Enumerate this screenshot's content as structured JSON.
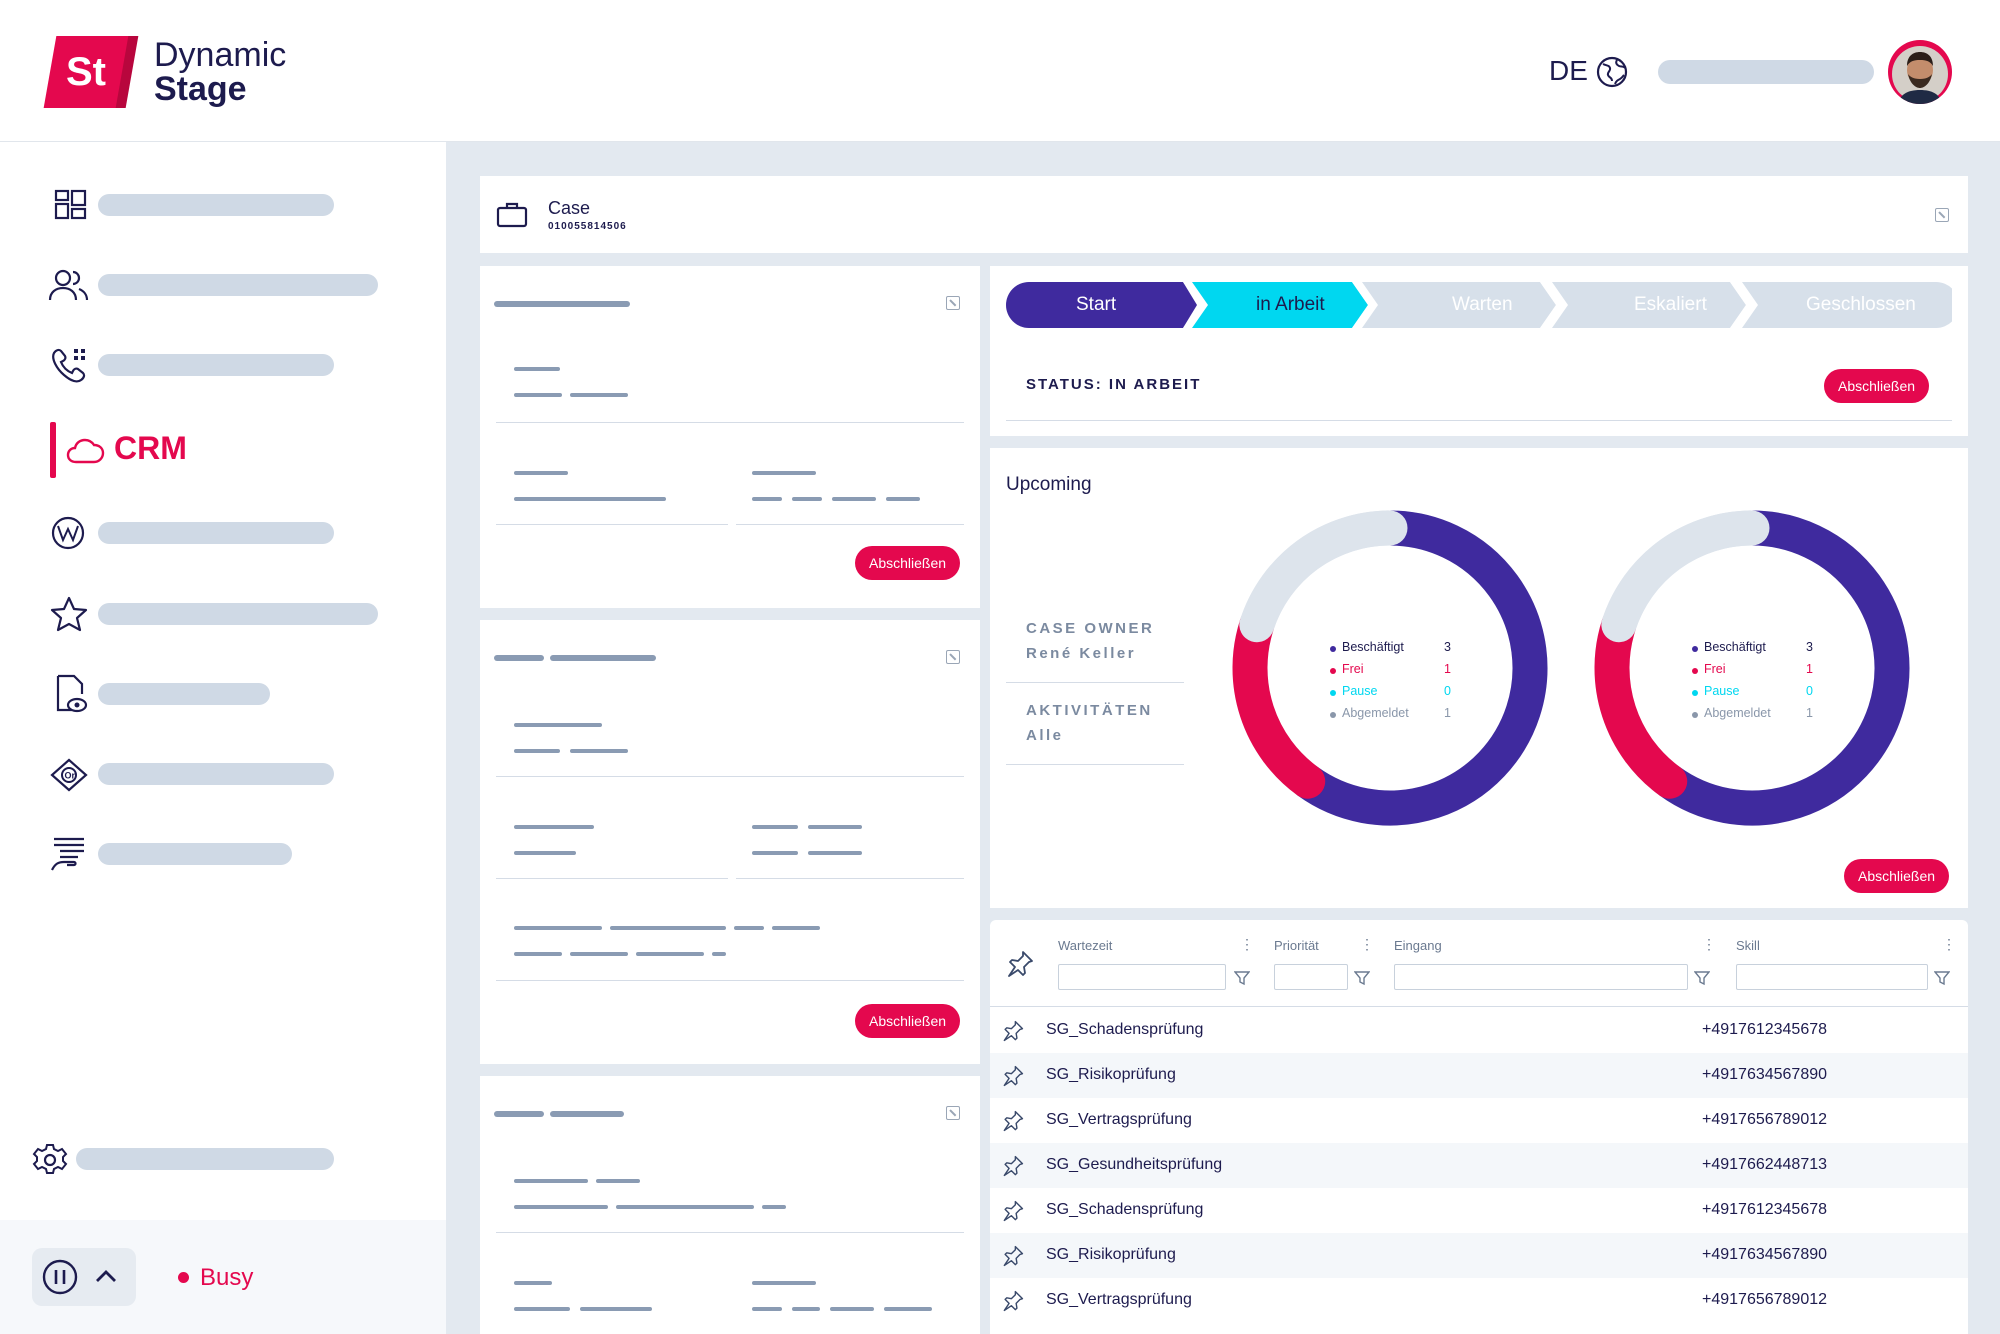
{
  "brand": {
    "mark": "St",
    "line1": "Dynamic",
    "line2": "Stage"
  },
  "header": {
    "language": "DE"
  },
  "sidebar": {
    "active_label": "CRM",
    "status_label": "Busy"
  },
  "case": {
    "title": "Case",
    "number": "010055814506"
  },
  "workflow": {
    "steps": [
      "Start",
      "in Arbeit",
      "Warten",
      "Eskaliert",
      "Geschlossen"
    ],
    "status_text": "STATUS: IN ARBEIT",
    "close_label": "Abschließen"
  },
  "cards": {
    "close_label": "Abschließen"
  },
  "upcoming": {
    "title": "Upcoming",
    "case_owner_label": "CASE OWNER",
    "case_owner_value": "René Keller",
    "activities_label": "AKTIVITÄTEN",
    "activities_value": "Alle",
    "close_label": "Abschließen"
  },
  "chart_data": [
    {
      "type": "pie",
      "categories": [
        "Beschäftigt",
        "Frei",
        "Pause",
        "Abgemeldet"
      ],
      "values": [
        3,
        1,
        0,
        1
      ],
      "colors": [
        "#3f2a9e",
        "#e4084e",
        "#00d7f0",
        "#dde4ec"
      ]
    },
    {
      "type": "pie",
      "categories": [
        "Beschäftigt",
        "Frei",
        "Pause",
        "Abgemeldet"
      ],
      "values": [
        3,
        1,
        0,
        1
      ],
      "colors": [
        "#3f2a9e",
        "#e4084e",
        "#00d7f0",
        "#dde4ec"
      ]
    }
  ],
  "queue": {
    "columns": [
      "Wartezeit",
      "Priorität",
      "Eingang",
      "Skill"
    ],
    "rows": [
      {
        "name": "SG_Schadensprüfung",
        "phone": "+4917612345678"
      },
      {
        "name": "SG_Risikoprüfung",
        "phone": "+4917634567890"
      },
      {
        "name": "SG_Vertragsprüfung",
        "phone": "+4917656789012"
      },
      {
        "name": "SG_Gesundheitsprüfung",
        "phone": "+4917662448713"
      },
      {
        "name": "SG_Schadensprüfung",
        "phone": "+4917612345678"
      },
      {
        "name": "SG_Risikoprüfung",
        "phone": "+4917634567890"
      },
      {
        "name": "SG_Vertragsprüfung",
        "phone": "+4917656789012"
      }
    ]
  },
  "colors": {
    "brand_red": "#e4084e",
    "indigo": "#3f2a9e",
    "cyan": "#00d7f0",
    "navy": "#1d1b4e"
  }
}
